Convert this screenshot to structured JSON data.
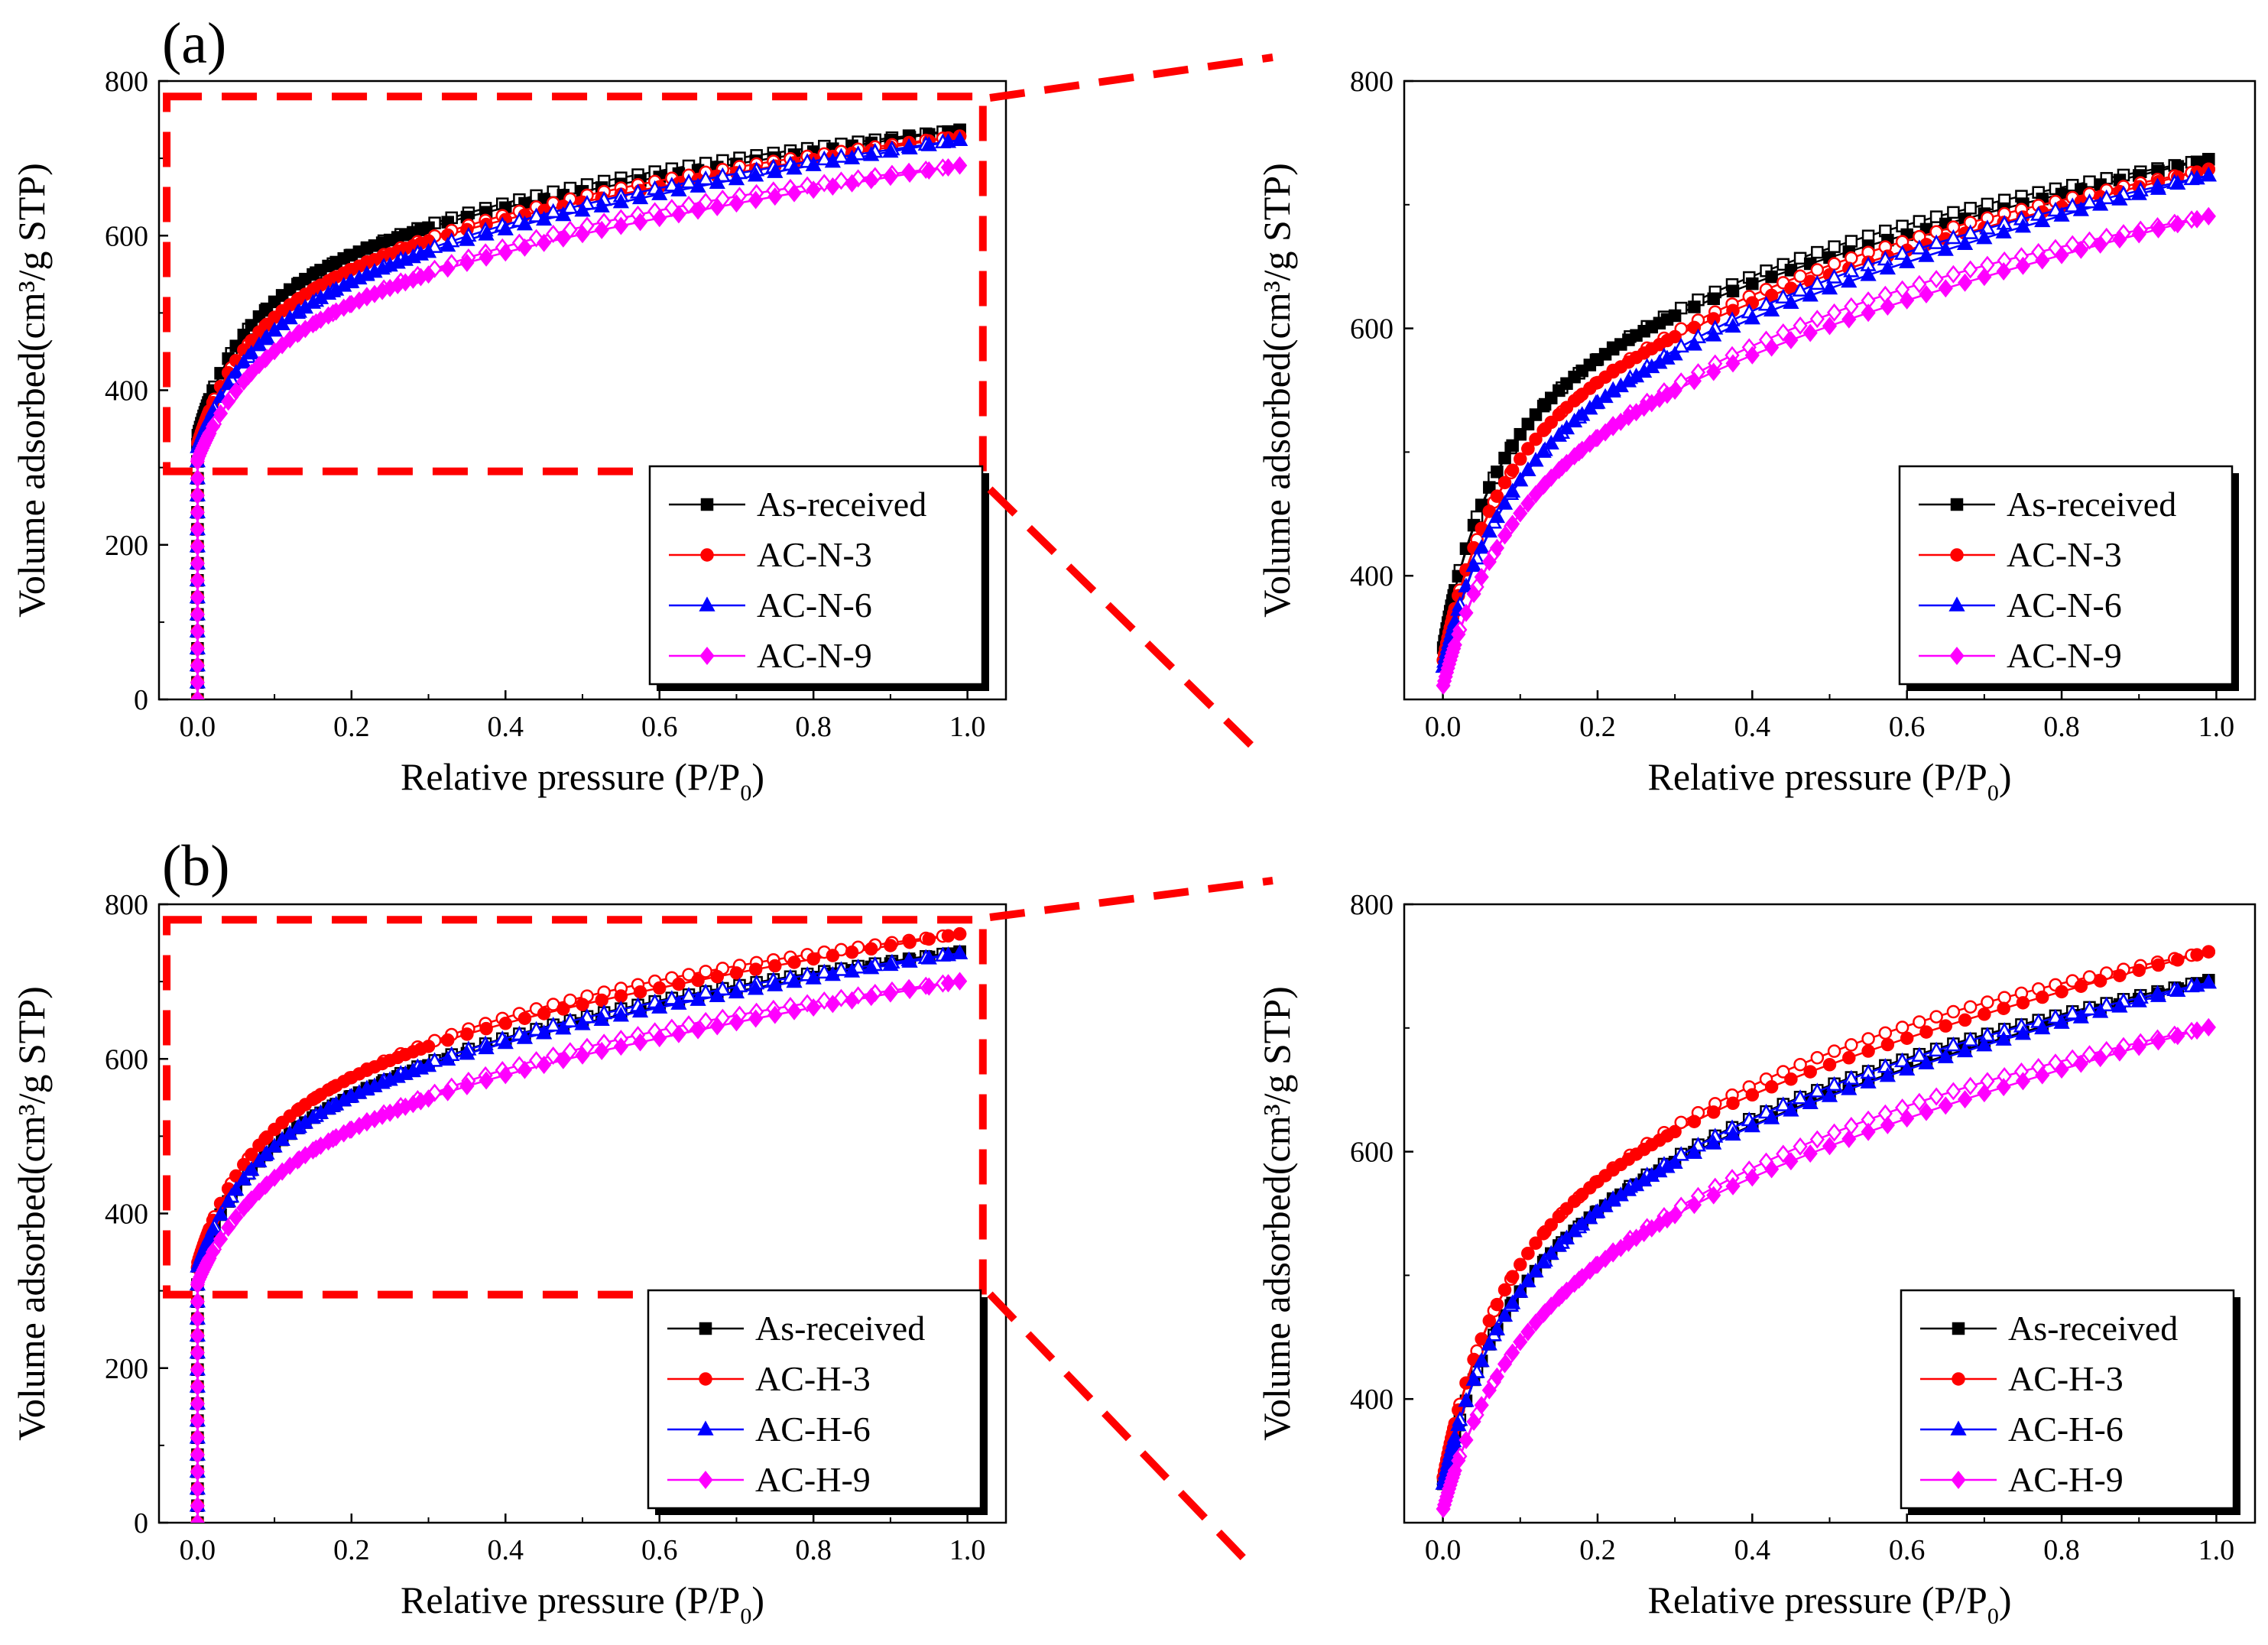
{
  "figure": {
    "panel_labels": [
      "(a)",
      "(b)"
    ]
  },
  "colors": {
    "as_received": "#000000",
    "ac_3": "#ff0000",
    "ac_6": "#0000ff",
    "ac_9": "#ff00ff",
    "zoom_box": "#ff0000"
  },
  "chart_data": [
    {
      "id": "a-full",
      "type": "line",
      "xlabel": "Relative pressure (P/P",
      "xlabel_sub": "0",
      "xlabel_close": ")",
      "ylabel": "Volume adsorbed(cm³/g STP)",
      "xlim": [
        -0.05,
        1.05
      ],
      "ylim": [
        0,
        800
      ],
      "xticks": [
        0.0,
        0.2,
        0.4,
        0.6,
        0.8,
        1.0
      ],
      "xtick_labels": [
        "0.0",
        "0.2",
        "0.4",
        "0.6",
        "0.8",
        "1.0"
      ],
      "yticks": [
        0,
        200,
        400,
        600,
        800
      ],
      "ytick_labels": [
        "0",
        "200",
        "400",
        "600",
        "800"
      ],
      "zoom_box": {
        "x": [
          -0.04,
          1.02
        ],
        "y": [
          295,
          780
        ]
      },
      "legend": [
        "As-received",
        "AC-N-3",
        "AC-N-6",
        "AC-N-9"
      ],
      "series": [
        {
          "name": "As-received",
          "marker": "square",
          "v0": 340,
          "vs": 640,
          "vmax": 738,
          "k": 0.085,
          "hyst": 8
        },
        {
          "name": "AC-N-3",
          "marker": "circle",
          "v0": 330,
          "vs": 625,
          "vmax": 730,
          "k": 0.095,
          "hyst": 8
        },
        {
          "name": "AC-N-6",
          "marker": "triangle",
          "v0": 325,
          "vs": 615,
          "vmax": 725,
          "k": 0.11,
          "hyst": 8
        },
        {
          "name": "AC-N-9",
          "marker": "diamond",
          "v0": 310,
          "vs": 590,
          "vmax": 692,
          "k": 0.12,
          "hyst": 10
        }
      ]
    },
    {
      "id": "a-zoom",
      "type": "line",
      "xlabel": "Relative pressure (P/P",
      "xlabel_sub": "0",
      "xlabel_close": ")",
      "ylabel": "Volume adsorbed(cm³/g STP)",
      "xlim": [
        -0.05,
        1.05
      ],
      "ylim": [
        300,
        800
      ],
      "xticks": [
        0.0,
        0.2,
        0.4,
        0.6,
        0.8,
        1.0
      ],
      "xtick_labels": [
        "0.0",
        "0.2",
        "0.4",
        "0.6",
        "0.8",
        "1.0"
      ],
      "yticks": [
        400,
        600,
        800
      ],
      "ytick_labels": [
        "400",
        "600",
        "800"
      ],
      "legend": [
        "As-received",
        "AC-N-3",
        "AC-N-6",
        "AC-N-9"
      ],
      "series": [
        {
          "name": "As-received",
          "marker": "square",
          "v0": 340,
          "vs": 640,
          "vmax": 738,
          "k": 0.085,
          "hyst": 8
        },
        {
          "name": "AC-N-3",
          "marker": "circle",
          "v0": 330,
          "vs": 625,
          "vmax": 730,
          "k": 0.095,
          "hyst": 8
        },
        {
          "name": "AC-N-6",
          "marker": "triangle",
          "v0": 325,
          "vs": 615,
          "vmax": 725,
          "k": 0.11,
          "hyst": 8
        },
        {
          "name": "AC-N-9",
          "marker": "diamond",
          "v0": 310,
          "vs": 590,
          "vmax": 692,
          "k": 0.12,
          "hyst": 10
        }
      ]
    },
    {
      "id": "b-full",
      "type": "line",
      "xlabel": "Relative pressure (P/P",
      "xlabel_sub": "0",
      "xlabel_close": ")",
      "ylabel": "Volume adsorbed(cm³/g STP)",
      "xlim": [
        -0.05,
        1.05
      ],
      "ylim": [
        0,
        800
      ],
      "xticks": [
        0.0,
        0.2,
        0.4,
        0.6,
        0.8,
        1.0
      ],
      "xtick_labels": [
        "0.0",
        "0.2",
        "0.4",
        "0.6",
        "0.8",
        "1.0"
      ],
      "yticks": [
        0,
        200,
        400,
        600,
        800
      ],
      "ytick_labels": [
        "0",
        "200",
        "400",
        "600",
        "800"
      ],
      "zoom_box": {
        "x": [
          -0.04,
          1.02
        ],
        "y": [
          295,
          780
        ]
      },
      "legend": [
        "As-received",
        "AC-H-3",
        "AC-H-6",
        "AC-H-9"
      ],
      "series": [
        {
          "name": "As-received",
          "marker": "square",
          "v0": 330,
          "vs": 630,
          "vmax": 740,
          "k": 0.11,
          "hyst": 8
        },
        {
          "name": "AC-H-3",
          "marker": "circle",
          "v0": 335,
          "vs": 655,
          "vmax": 763,
          "k": 0.1,
          "hyst": 10
        },
        {
          "name": "AC-H-6",
          "marker": "triangle",
          "v0": 330,
          "vs": 630,
          "vmax": 738,
          "k": 0.11,
          "hyst": 8
        },
        {
          "name": "AC-H-9",
          "marker": "diamond",
          "v0": 310,
          "vs": 590,
          "vmax": 702,
          "k": 0.13,
          "hyst": 10
        }
      ]
    },
    {
      "id": "b-zoom",
      "type": "line",
      "xlabel": "Relative pressure (P/P",
      "xlabel_sub": "0",
      "xlabel_close": ")",
      "ylabel": "Volume adsorbed(cm³/g STP)",
      "xlim": [
        -0.05,
        1.05
      ],
      "ylim": [
        300,
        800
      ],
      "xticks": [
        0.0,
        0.2,
        0.4,
        0.6,
        0.8,
        1.0
      ],
      "xtick_labels": [
        "0.0",
        "0.2",
        "0.4",
        "0.6",
        "0.8",
        "1.0"
      ],
      "yticks": [
        400,
        600,
        800
      ],
      "ytick_labels": [
        "400",
        "600",
        "800"
      ],
      "legend": [
        "As-received",
        "AC-H-3",
        "AC-H-6",
        "AC-H-9"
      ],
      "series": [
        {
          "name": "As-received",
          "marker": "square",
          "v0": 330,
          "vs": 630,
          "vmax": 740,
          "k": 0.11,
          "hyst": 8
        },
        {
          "name": "AC-H-3",
          "marker": "circle",
          "v0": 335,
          "vs": 655,
          "vmax": 763,
          "k": 0.1,
          "hyst": 10
        },
        {
          "name": "AC-H-6",
          "marker": "triangle",
          "v0": 330,
          "vs": 630,
          "vmax": 738,
          "k": 0.11,
          "hyst": 8
        },
        {
          "name": "AC-H-9",
          "marker": "diamond",
          "v0": 310,
          "vs": 590,
          "vmax": 702,
          "k": 0.13,
          "hyst": 10
        }
      ]
    }
  ]
}
